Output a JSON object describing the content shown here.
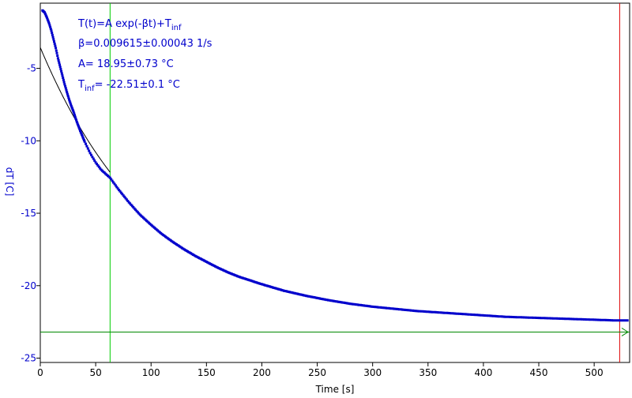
{
  "colors": {
    "data": "#0000cc",
    "fit": "#000000",
    "cursor_v": "#00cc00",
    "cursor_h": "#008800",
    "cursor_end": "#dd0000",
    "axis_text": "#000000",
    "ylabel_text": "#0000cc",
    "annot_text": "#0000cc"
  },
  "annotations": {
    "formula_main": "T(t)=A exp(-βt)+T",
    "formula_sub": "inf",
    "beta": "β=0.009615±0.00043 1/s",
    "amplitude": "A= 18.95±0.73 °C",
    "tinf_prefix": "T",
    "tinf_sub": "inf",
    "tinf_value": "= -22.51±0.1 °C"
  },
  "chart_data": {
    "type": "scatter",
    "xlabel": "Time [s]",
    "ylabel": "dT [C]",
    "xlim": [
      0,
      532
    ],
    "ylim": [
      -25.3,
      -0.5
    ],
    "xticks": [
      0,
      50,
      100,
      150,
      200,
      250,
      300,
      350,
      400,
      450,
      500
    ],
    "yticks": [
      -25,
      -20,
      -15,
      -10,
      -5
    ],
    "grid": false,
    "legend": "none",
    "series": [
      {
        "kind": "measured-points",
        "x": [
          2,
          4,
          6,
          8,
          10,
          12,
          14,
          16,
          18,
          20,
          22,
          24,
          26,
          28,
          30,
          33,
          36,
          40,
          45,
          50,
          55,
          60,
          63,
          70,
          80,
          90,
          100,
          110,
          120,
          130,
          140,
          150,
          160,
          170,
          180,
          190,
          200,
          220,
          240,
          260,
          280,
          300,
          320,
          340,
          360,
          380,
          400,
          420,
          440,
          460,
          480,
          500,
          520,
          530
        ],
        "y": [
          -1.0,
          -1.15,
          -1.5,
          -1.9,
          -2.4,
          -3.0,
          -3.6,
          -4.3,
          -4.9,
          -5.5,
          -6.1,
          -6.65,
          -7.15,
          -7.6,
          -8.0,
          -8.7,
          -9.3,
          -10.05,
          -10.85,
          -11.5,
          -12.0,
          -12.35,
          -12.55,
          -13.3,
          -14.25,
          -15.1,
          -15.8,
          -16.45,
          -17.0,
          -17.5,
          -17.95,
          -18.35,
          -18.75,
          -19.1,
          -19.4,
          -19.65,
          -19.9,
          -20.35,
          -20.7,
          -21.0,
          -21.25,
          -21.45,
          -21.6,
          -21.75,
          -21.85,
          -21.95,
          -22.05,
          -22.15,
          -22.2,
          -22.25,
          -22.3,
          -22.35,
          -22.4,
          -22.4
        ]
      },
      {
        "kind": "fit-curve",
        "equation": "T(t)=A exp(-βt)+Tinf",
        "A": 18.95,
        "beta": 0.009615,
        "Tinf": -22.51,
        "x_range": [
          0,
          63
        ]
      }
    ],
    "cursors": {
      "vertical_green_x": 63,
      "vertical_red_x": 523,
      "horizontal_green_y": -23.2
    }
  }
}
